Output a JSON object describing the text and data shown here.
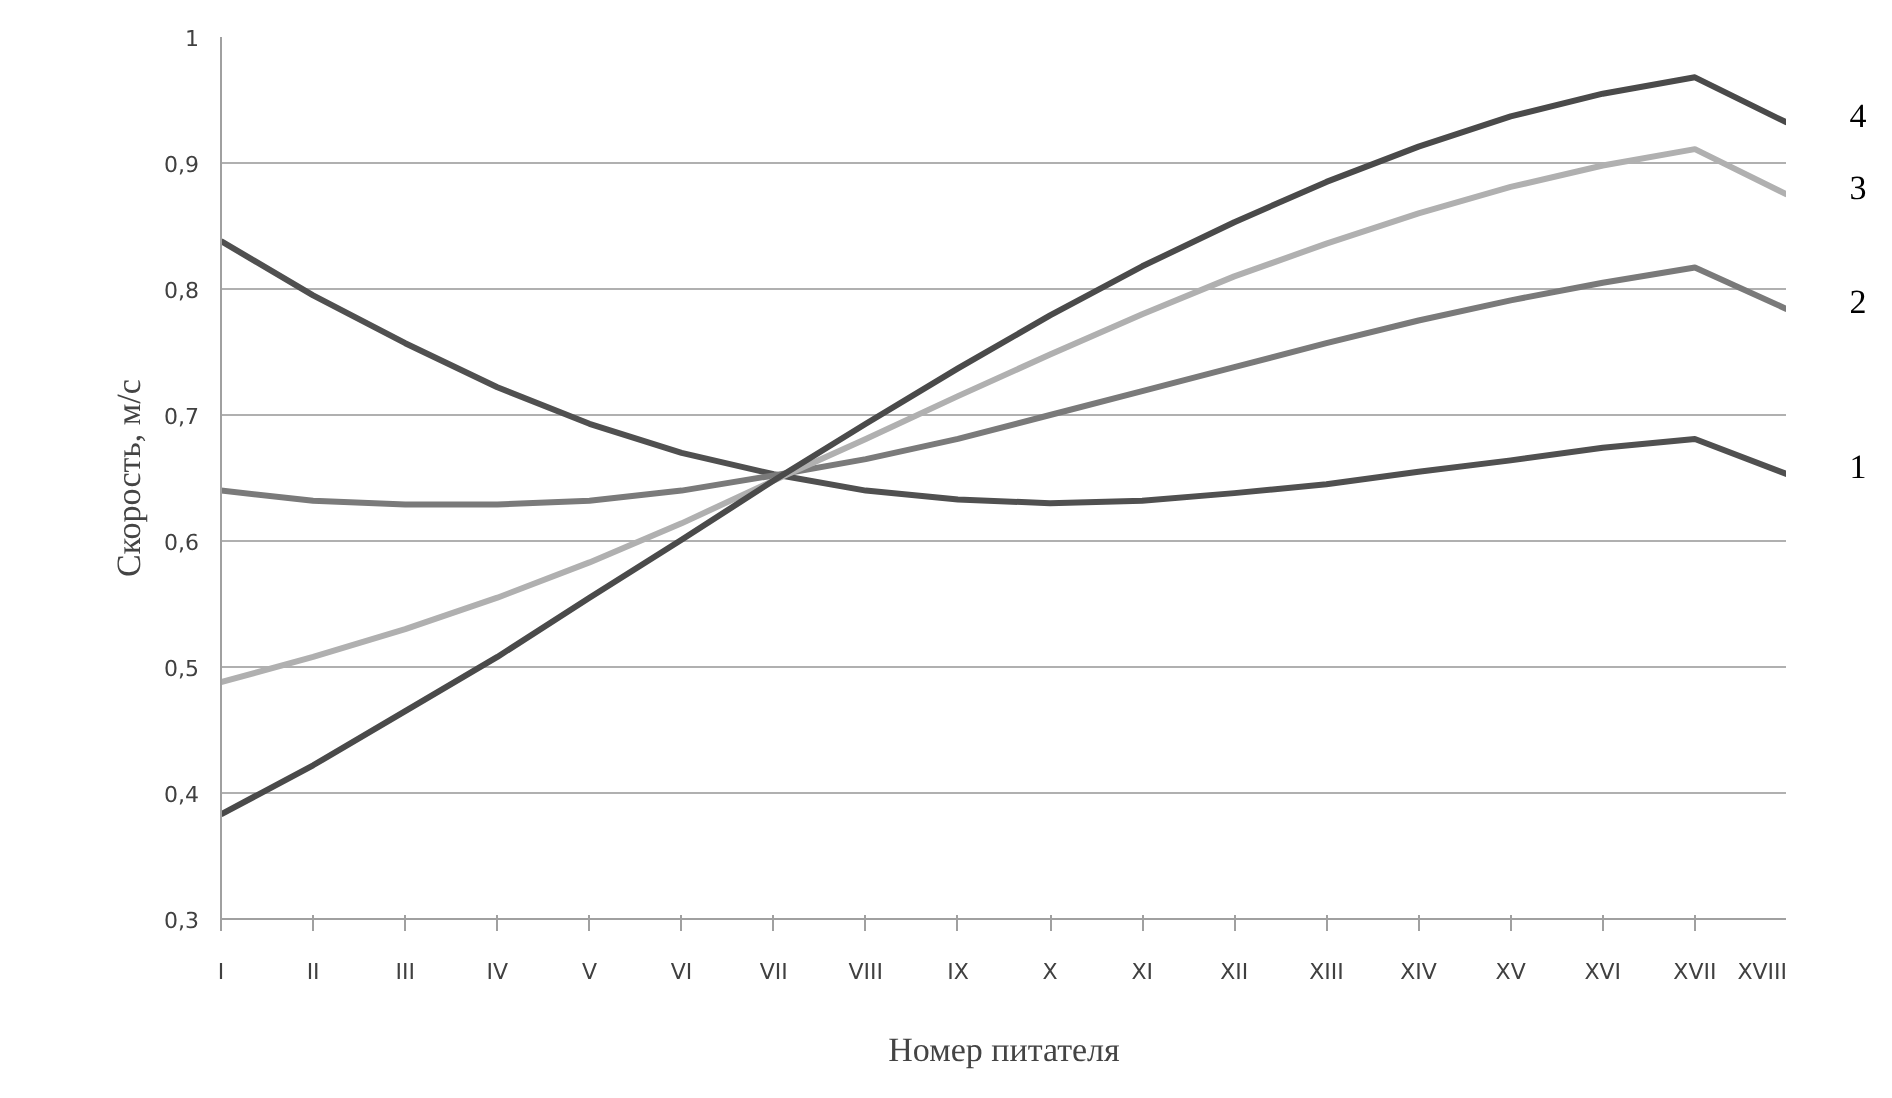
{
  "chart_data": {
    "type": "line",
    "xlabel": "Номер питателя",
    "ylabel": "Скорость, м/с",
    "categories": [
      "I",
      "II",
      "III",
      "IV",
      "V",
      "VI",
      "VII",
      "VIII",
      "IX",
      "X",
      "XI",
      "XII",
      "XIII",
      "XIV",
      "XV",
      "XVI",
      "XVII",
      "XVIII"
    ],
    "ylim": [
      0.3,
      1
    ],
    "yticks": [
      {
        "value": 0.3,
        "label": "0,3"
      },
      {
        "value": 0.4,
        "label": "0,4"
      },
      {
        "value": 0.5,
        "label": "0,5"
      },
      {
        "value": 0.6,
        "label": "0,6"
      },
      {
        "value": 0.7,
        "label": "0,7"
      },
      {
        "value": 0.8,
        "label": "0,8"
      },
      {
        "value": 0.9,
        "label": "0,9"
      },
      {
        "value": 1,
        "label": "1"
      }
    ],
    "grid": "y",
    "line_style": "solid",
    "marker": "none",
    "series": [
      {
        "name": "1",
        "color": "#505050",
        "values": [
          0.838,
          0.795,
          0.757,
          0.722,
          0.693,
          0.67,
          0.653,
          0.64,
          0.633,
          0.63,
          0.632,
          0.638,
          0.645,
          0.655,
          0.664,
          0.674,
          0.681,
          0.653
        ]
      },
      {
        "name": "2",
        "color": "#7a7a7a",
        "values": [
          0.64,
          0.632,
          0.629,
          0.629,
          0.632,
          0.64,
          0.652,
          0.665,
          0.681,
          0.7,
          0.719,
          0.738,
          0.757,
          0.775,
          0.791,
          0.805,
          0.817,
          0.784
        ]
      },
      {
        "name": "3",
        "color": "#b0b0b0",
        "values": [
          0.488,
          0.508,
          0.53,
          0.555,
          0.583,
          0.614,
          0.648,
          0.681,
          0.715,
          0.748,
          0.78,
          0.81,
          0.836,
          0.86,
          0.881,
          0.898,
          0.911,
          0.875
        ]
      },
      {
        "name": "4",
        "color": "#4a4a4a",
        "values": [
          0.383,
          0.422,
          0.465,
          0.508,
          0.555,
          0.601,
          0.648,
          0.693,
          0.737,
          0.779,
          0.818,
          0.853,
          0.885,
          0.913,
          0.937,
          0.955,
          0.968,
          0.932
        ]
      }
    ]
  }
}
